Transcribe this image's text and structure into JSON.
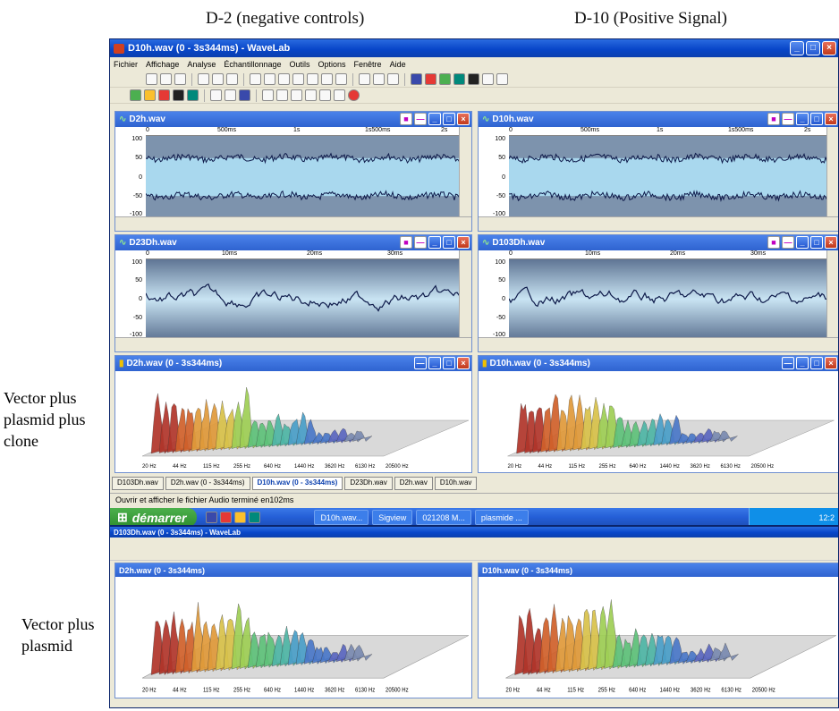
{
  "captions": {
    "left_top": "D-2 (negative controls)",
    "right_top": "D-10 (Positive Signal)",
    "row1": [
      "Vector plus",
      "plasmid plus",
      "clone"
    ],
    "row2": [
      "Vector plus",
      "plasmid"
    ]
  },
  "app": {
    "title": "D10h.wav (0 - 3s344ms) - WaveLab",
    "menu": [
      "Fichier",
      "Affichage",
      "Analyse",
      "Échantillonnage",
      "Outils",
      "Options",
      "Fenêtre",
      "Aide"
    ]
  },
  "panels": {
    "wave_tl": {
      "title": "D2h.wav",
      "ruler": [
        "0",
        "500ms",
        "1s",
        "1s500ms",
        "2s"
      ],
      "y": [
        "100",
        "50",
        "0",
        "-50",
        "-100"
      ]
    },
    "wave_tr": {
      "title": "D10h.wav",
      "ruler": [
        "0",
        "500ms",
        "1s",
        "1s500ms",
        "2s"
      ],
      "y": [
        "100",
        "50",
        "0",
        "-50",
        "-100"
      ]
    },
    "wave_ml": {
      "title": "D23Dh.wav",
      "ruler": [
        "0",
        "10ms",
        "20ms",
        "30ms"
      ],
      "y": [
        "100",
        "50",
        "0",
        "-50",
        "-100"
      ]
    },
    "wave_mr": {
      "title": "D103Dh.wav",
      "ruler": [
        "0",
        "10ms",
        "20ms",
        "30ms"
      ],
      "y": [
        "100",
        "50",
        "0",
        "-50",
        "-100"
      ]
    },
    "spec_l": {
      "title": "D2h.wav (0 - 3s344ms)"
    },
    "spec_r": {
      "title": "D10h.wav (0 - 3s344ms)"
    },
    "freq_ticks": [
      "20 Hz",
      "44 Hz",
      "115 Hz",
      "255 Hz",
      "640 Hz",
      "1440 Hz",
      "3620 Hz",
      "6130 Hz",
      "20500 Hz"
    ]
  },
  "doc_tabs": [
    "D103Dh.wav",
    "D2h.wav (0 - 3s344ms)",
    "D10h.wav (0 - 3s344ms)",
    "D23Dh.wav",
    "D2h.wav",
    "D10h.wav"
  ],
  "status": "Ouvrir et afficher le fichier Audio terminé en102ms",
  "taskbar": {
    "start": "démarrer",
    "tasks": [
      "D10h.wav...",
      "Sigview",
      "021208 M...",
      "plasmide ..."
    ],
    "clock": "12:2"
  },
  "second": {
    "title": "D103Dh.wav (0 - 3s344ms) - WaveLab"
  },
  "colors": {
    "xp_blue": "#0846c9",
    "waveform_fill": "#a9d8ee",
    "trace": "#0e1a4a"
  }
}
